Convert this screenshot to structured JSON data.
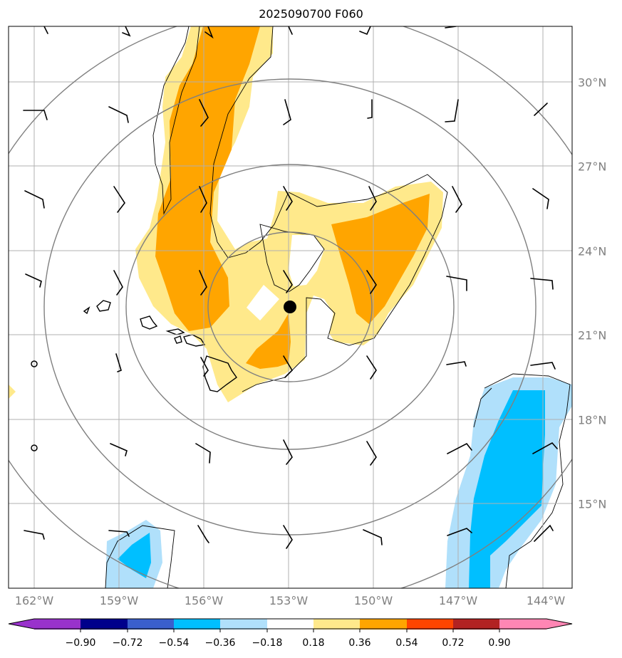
{
  "title": "2025090700 F060",
  "lon_labels": [
    "162°W",
    "159°W",
    "156°W",
    "153°W",
    "150°W",
    "147°W",
    "144°W"
  ],
  "lat_labels": [
    "30°N",
    "27°N",
    "24°N",
    "21°N",
    "18°N",
    "15°N"
  ],
  "colorbar": {
    "colors": [
      "#9932cc",
      "#00008b",
      "#3a5fcd",
      "#00bfff",
      "#b0e0fb",
      "#ffffff",
      "#ffe98b",
      "#ffa500",
      "#ff4500",
      "#b22222",
      "#ff86b4"
    ],
    "labels": [
      "−0.90",
      "−0.72",
      "−0.54",
      "−0.36",
      "−0.18",
      "0.18",
      "0.36",
      "0.54",
      "0.72",
      "0.90"
    ]
  },
  "storm_center": {
    "lon": -152.9,
    "lat": 21.9
  },
  "fill_colors": {
    "light_yellow": "#ffe98b",
    "orange": "#ffa500",
    "light_blue": "#b0e0fb",
    "deep_sky_blue": "#00bfff"
  }
}
